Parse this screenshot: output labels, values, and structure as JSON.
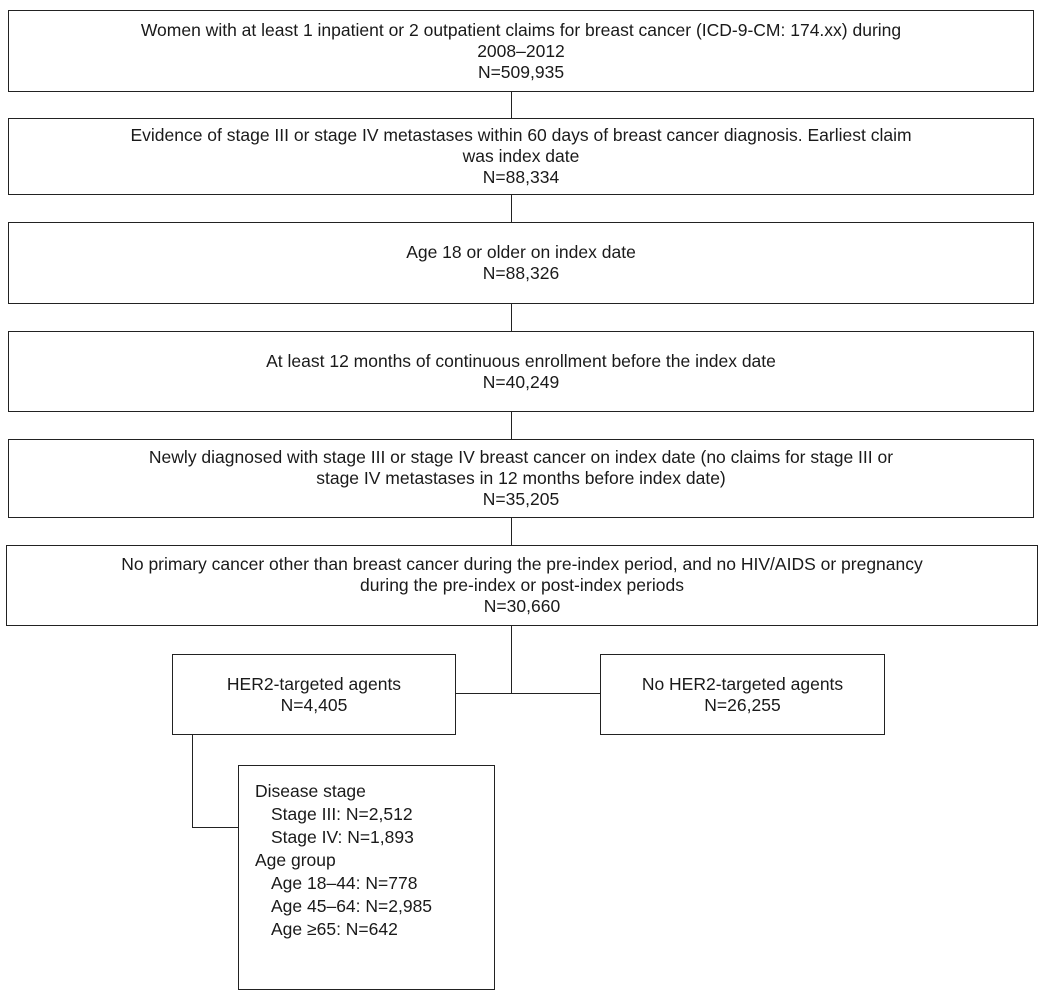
{
  "boxes": {
    "b1": [
      "Women with at least 1 inpatient or 2 outpatient claims for breast cancer (ICD-9-CM: 174.xx) during",
      "2008–2012",
      "N=509,935"
    ],
    "b2": [
      "Evidence of stage III or stage IV metastases within 60 days of breast cancer diagnosis. Earliest claim",
      "was index date",
      "N=88,334"
    ],
    "b3": [
      "Age 18 or older on index date",
      "N=88,326"
    ],
    "b4": [
      "At least 12 months of continuous enrollment before the index date",
      "N=40,249"
    ],
    "b5": [
      "Newly diagnosed with stage III or stage IV breast cancer on index date (no claims for stage III or",
      "stage IV metastases in 12 months before index date)",
      "N=35,205"
    ],
    "b6": [
      "No primary cancer other than breast cancer during the pre-index period, and no HIV/AIDS or pregnancy",
      "during the pre-index or post-index periods",
      "N=30,660"
    ],
    "her2": [
      "HER2-targeted agents",
      "N=4,405"
    ],
    "noher2": [
      "No HER2-targeted agents",
      "N=26,255"
    ]
  },
  "detail": {
    "stage_heading": "Disease stage",
    "stage_items": [
      "Stage III: N=2,512",
      "Stage IV: N=1,893"
    ],
    "age_heading": "Age group",
    "age_items": [
      "Age 18–44: N=778",
      "Age 45–64: N=2,985",
      "Age ≥65: N=642"
    ]
  }
}
